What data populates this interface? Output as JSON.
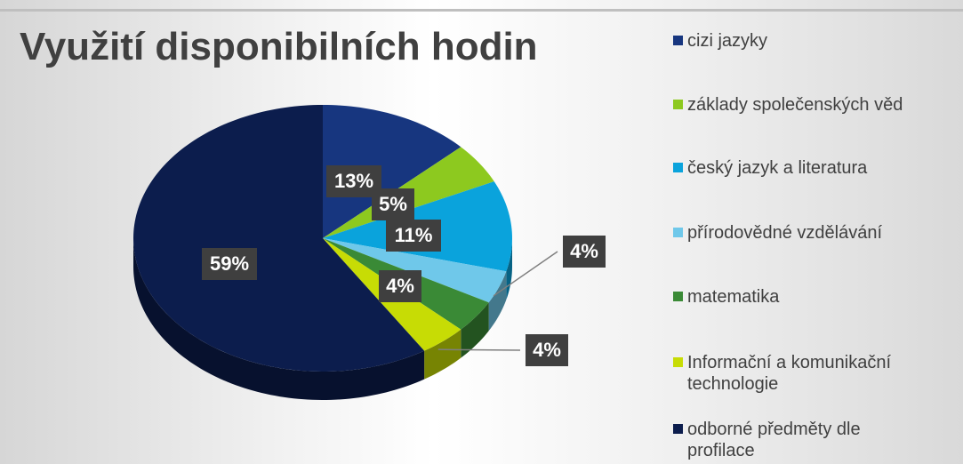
{
  "chart_data": {
    "type": "pie",
    "title": "Využití disponibilních hodin",
    "categories": [
      "cizi jazyky",
      "základy společenských věd",
      "český jazyk a literatura",
      "přírodovědné vzdělávání",
      "matematika",
      "Informační a komunikační technologie",
      "odborné předměty dle profilace"
    ],
    "values": [
      13,
      5,
      11,
      4,
      4,
      4,
      59
    ],
    "value_labels": [
      "13%",
      "5%",
      "11%",
      "4%",
      "4%",
      "4%",
      "59%"
    ],
    "colors": [
      "#17367f",
      "#8dc91f",
      "#0aa3dc",
      "#6fc8ea",
      "#3a8a36",
      "#c7dc05",
      "#0c1d4d"
    ],
    "legend": "right"
  }
}
